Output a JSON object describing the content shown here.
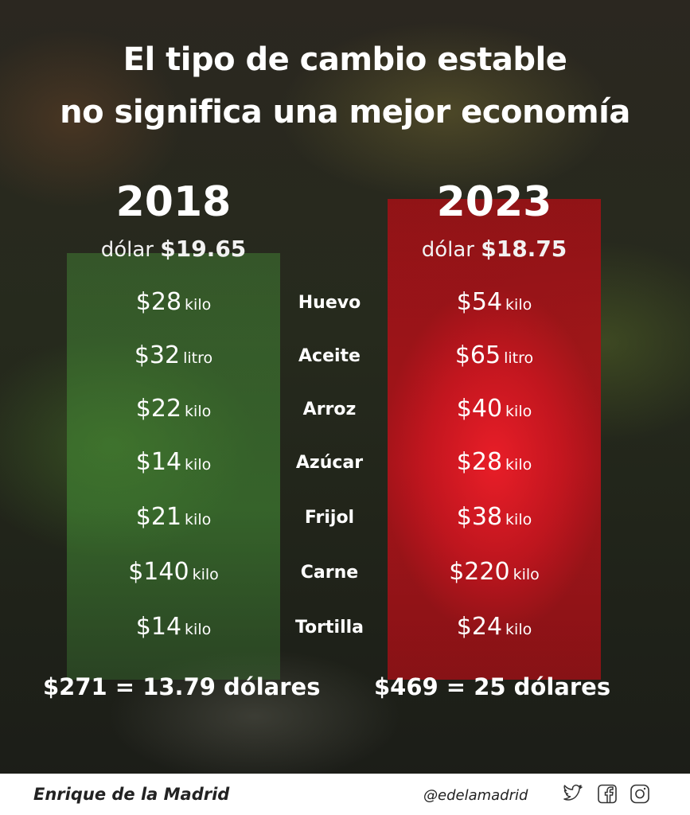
{
  "title": {
    "line1": "El tipo de cambio estable",
    "line2": "no significa una mejor economía"
  },
  "columns": [
    {
      "year": "2018",
      "dollar_label": "dólar",
      "dollar_rate": "$19.65",
      "accent": "#3f8f36"
    },
    {
      "year": "2023",
      "dollar_label": "dólar",
      "dollar_rate": "$18.75",
      "accent": "#e3202a"
    }
  ],
  "rows": [
    {
      "item": "Huevo",
      "price_2018": "$28",
      "unit_2018": "kilo",
      "price_2023": "$54",
      "unit_2023": "kilo"
    },
    {
      "item": "Aceite",
      "price_2018": "$32",
      "unit_2018": "litro",
      "price_2023": "$65",
      "unit_2023": "litro"
    },
    {
      "item": "Arroz",
      "price_2018": "$22",
      "unit_2018": "kilo",
      "price_2023": "$40",
      "unit_2023": "kilo"
    },
    {
      "item": "Azúcar",
      "price_2018": "$14",
      "unit_2018": "kilo",
      "price_2023": "$28",
      "unit_2023": "kilo"
    },
    {
      "item": "Frijol",
      "price_2018": "$21",
      "unit_2018": "kilo",
      "price_2023": "$38",
      "unit_2023": "kilo"
    },
    {
      "item": "Carne",
      "price_2018": "$140",
      "unit_2018": "kilo",
      "price_2023": "$220",
      "unit_2023": "kilo"
    },
    {
      "item": "Tortilla",
      "price_2018": "$14",
      "unit_2018": "kilo",
      "price_2023": "$24",
      "unit_2023": "kilo"
    }
  ],
  "totals": {
    "t2018": "$271 = 13.79 dólares",
    "t2023": "$469 = 25 dólares"
  },
  "footer": {
    "author": "Enrique de la Madrid",
    "handle": "@edelamadrid",
    "icons": [
      "twitter-icon",
      "facebook-icon",
      "instagram-icon"
    ]
  }
}
